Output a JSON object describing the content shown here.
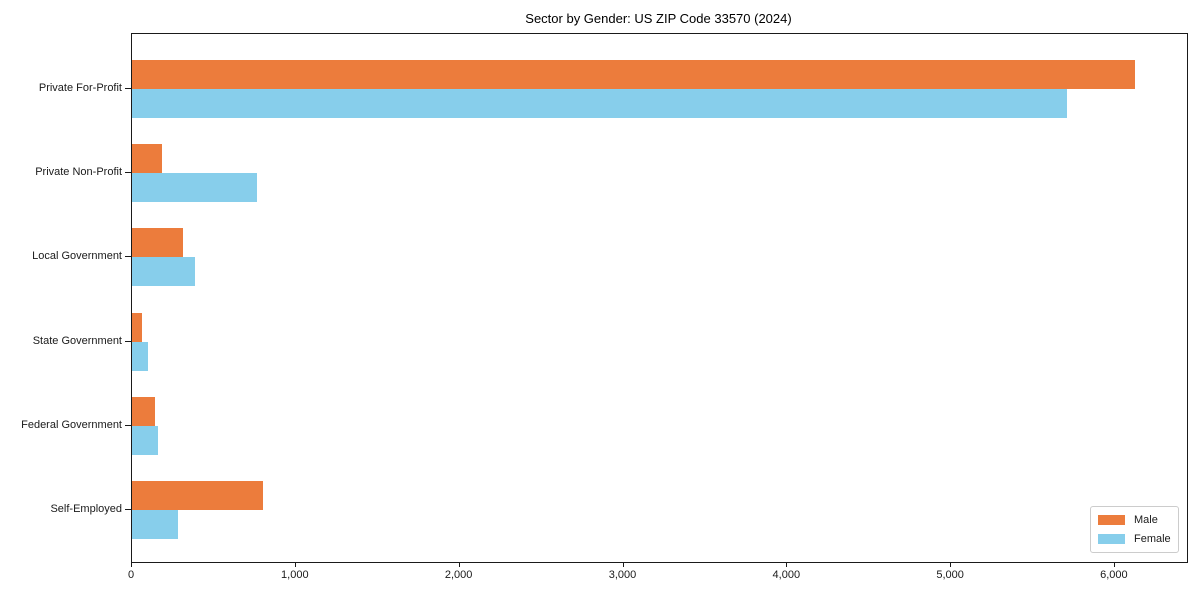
{
  "title": "Sector by Gender: US ZIP Code 33570 (2024)",
  "chart_data": {
    "type": "bar",
    "orientation": "horizontal",
    "title": "Sector by Gender: US ZIP Code 33570 (2024)",
    "xlabel": "",
    "ylabel": "",
    "categories": [
      "Private For-Profit",
      "Private Non-Profit",
      "Local Government",
      "State Government",
      "Federal Government",
      "Self-Employed"
    ],
    "series": [
      {
        "name": "Male",
        "color": "#EC7C3C",
        "values": [
          6120,
          180,
          310,
          60,
          140,
          800
        ]
      },
      {
        "name": "Female",
        "color": "#87CEEB",
        "values": [
          5710,
          760,
          385,
          95,
          160,
          280
        ]
      }
    ],
    "xlim": [
      0,
      6440
    ],
    "xticks": [
      0,
      1000,
      2000,
      3000,
      4000,
      5000,
      6000
    ],
    "xtick_labels": [
      "0",
      "1,000",
      "2,000",
      "3,000",
      "4,000",
      "5,000",
      "6,000"
    ],
    "grid": false,
    "legend_position": "lower right"
  }
}
